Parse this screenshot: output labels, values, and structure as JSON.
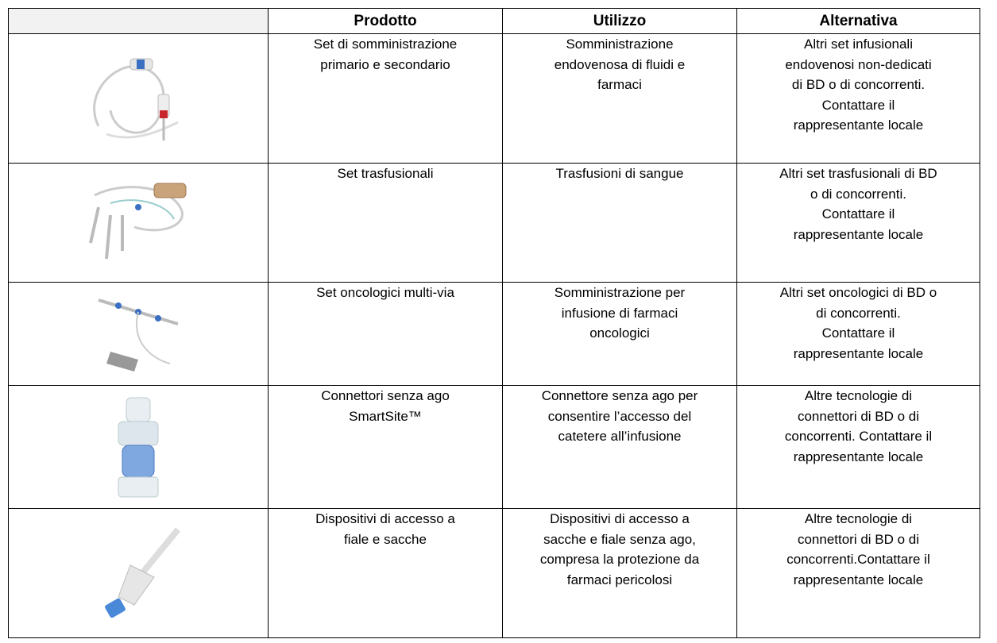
{
  "table": {
    "header": [
      "Prodotto",
      "Utilizzo",
      "Alternativa"
    ],
    "rows": [
      [
        [
          "Set di somministrazione",
          "primario e secondario"
        ],
        [
          "Somministrazione",
          "endovenosa di fluidi e",
          "farmaci"
        ],
        [
          "Altri set infusionali",
          "endovenosi non-dedicati",
          "di BD o di concorrenti.",
          "Contattare il",
          "rappresentante locale"
        ]
      ],
      [
        [
          "Set trasfusionali"
        ],
        [
          "Trasfusioni di sangue"
        ],
        [
          "Altri set trasfusionali di BD",
          "o di concorrenti.",
          "Contattare il",
          "rappresentante locale"
        ]
      ],
      [
        [
          "Set oncologici multi-via"
        ],
        [
          "Somministrazione per",
          "infusione di farmaci",
          "oncologici"
        ],
        [
          "Altri set oncologici di BD o",
          "di concorrenti.",
          "Contattare il",
          "rappresentante locale"
        ]
      ],
      [
        [
          "Connettori senza ago",
          "SmartSite™"
        ],
        [
          "Connettore senza ago per",
          "consentire l’accesso del",
          "catetere all’infusione"
        ],
        [
          "Altre tecnologie di",
          "connettori di BD o di",
          "concorrenti. Contattare il",
          "rappresentante locale"
        ]
      ],
      [
        [
          "Dispositivi di accesso a",
          "fiale e sacche"
        ],
        [
          "Dispositivi di accesso a",
          "sacche e fiale senza ago,",
          "compresa la protezione da",
          "farmaci pericolosi"
        ],
        [
          "Altre tecnologie di",
          "connettori di BD o di",
          "concorrenti.Contattare il",
          "rappresentante locale"
        ]
      ]
    ]
  }
}
